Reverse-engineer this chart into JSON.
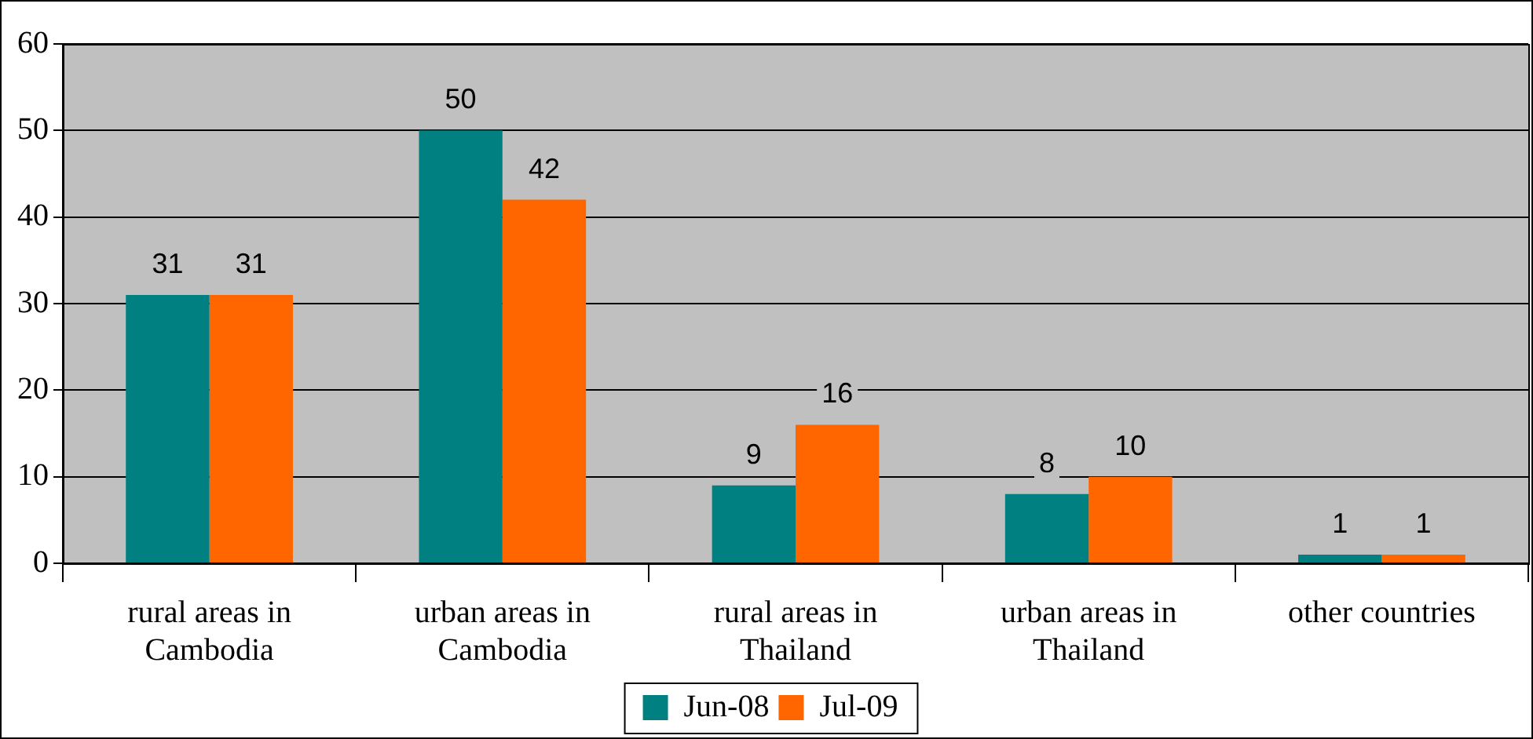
{
  "chart_data": {
    "type": "bar",
    "categories": [
      "rural areas in Cambodia",
      "urban areas in Cambodia",
      "rural areas in Thailand",
      "urban areas in Thailand",
      "other countries"
    ],
    "series": [
      {
        "name": "Jun-08",
        "color": "#008080",
        "values": [
          31,
          50,
          9,
          8,
          1
        ]
      },
      {
        "name": "Jul-09",
        "color": "#ff6600",
        "values": [
          31,
          42,
          16,
          10,
          1
        ]
      }
    ],
    "ylim": [
      0,
      60
    ],
    "yticks": [
      0,
      10,
      20,
      30,
      40,
      50,
      60
    ],
    "grid": "y",
    "legend": "bottom",
    "data_labels": true
  }
}
